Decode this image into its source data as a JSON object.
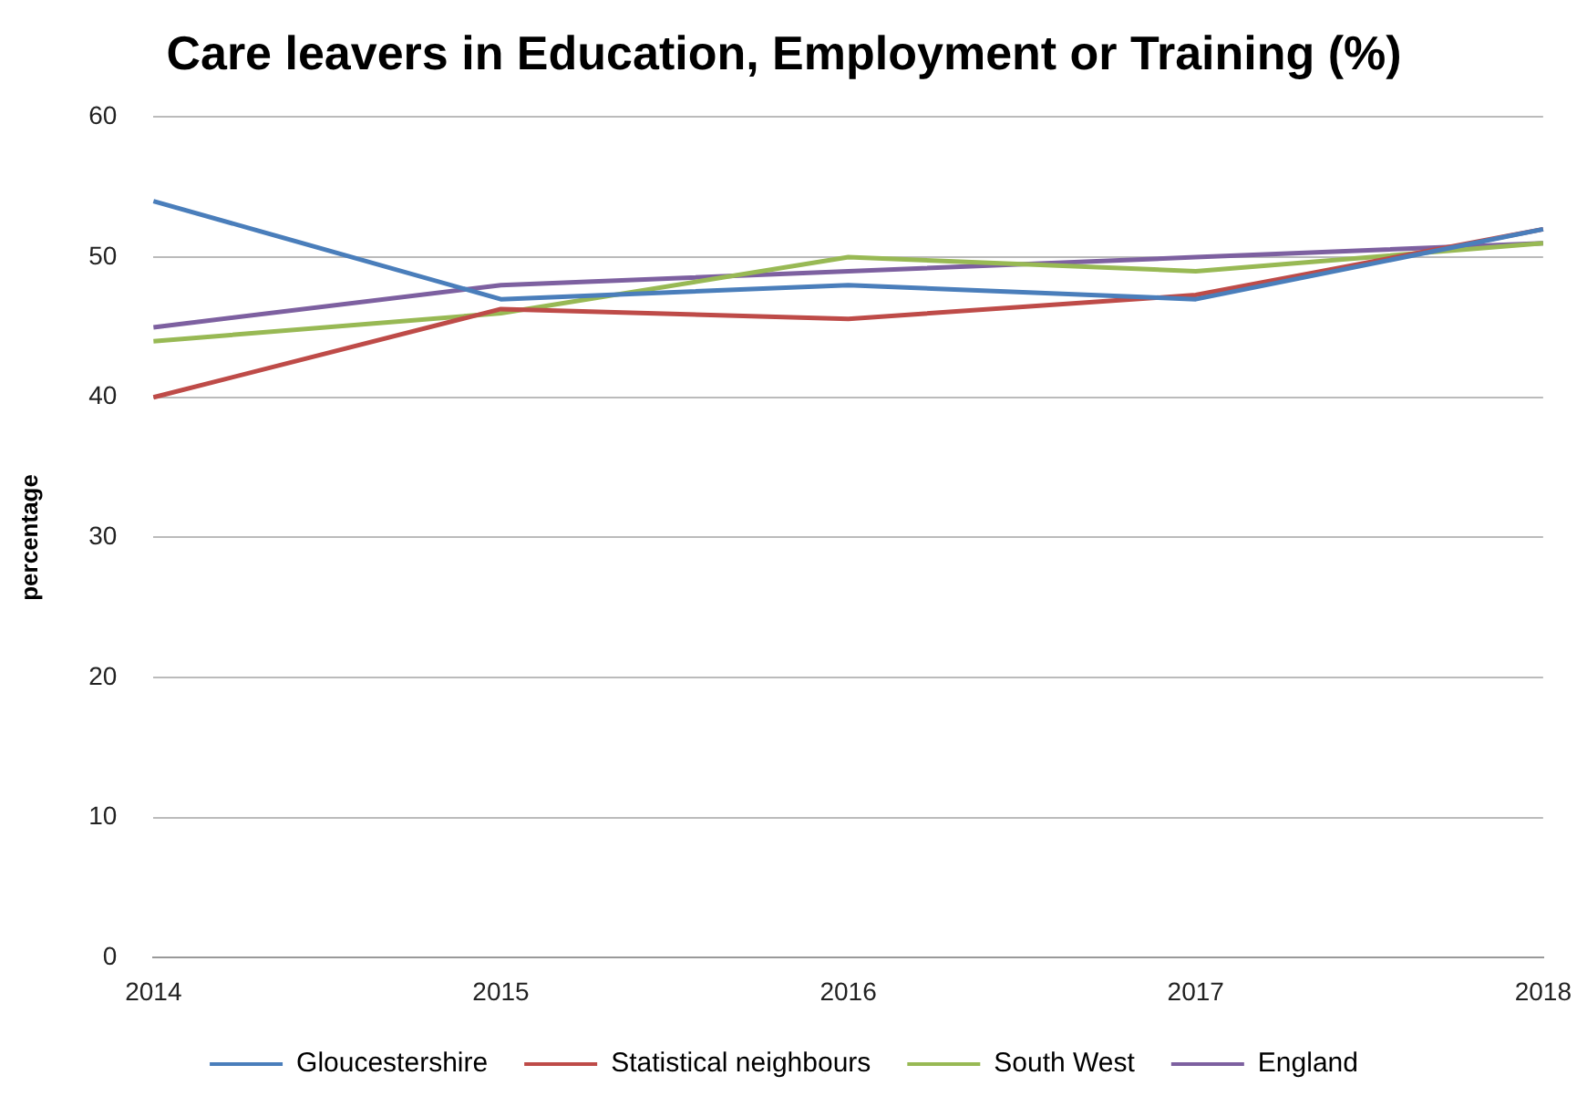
{
  "chart_data": {
    "type": "line",
    "title": "Care leavers in Education, Employment or Training (%)",
    "ylabel": "percentage",
    "categories": [
      "2014",
      "2015",
      "2016",
      "2017",
      "2018"
    ],
    "series": [
      {
        "name": "Gloucestershire",
        "color": "#4a7ebb",
        "values": [
          54,
          47,
          48,
          47,
          52
        ]
      },
      {
        "name": "Statistical neighbours",
        "color": "#be4b48",
        "values": [
          40,
          46.3,
          45.6,
          47.3,
          52
        ]
      },
      {
        "name": "South West",
        "color": "#98b954",
        "values": [
          44,
          46,
          50,
          49,
          51
        ]
      },
      {
        "name": "England",
        "color": "#7d60a0",
        "values": [
          45,
          48,
          49,
          50,
          51
        ]
      }
    ],
    "ylim": [
      0,
      60
    ],
    "yticks": [
      0,
      10,
      20,
      30,
      40,
      50,
      60
    ],
    "grid": "y",
    "legend": "bottom",
    "marker": "none",
    "line_style": "solid"
  }
}
